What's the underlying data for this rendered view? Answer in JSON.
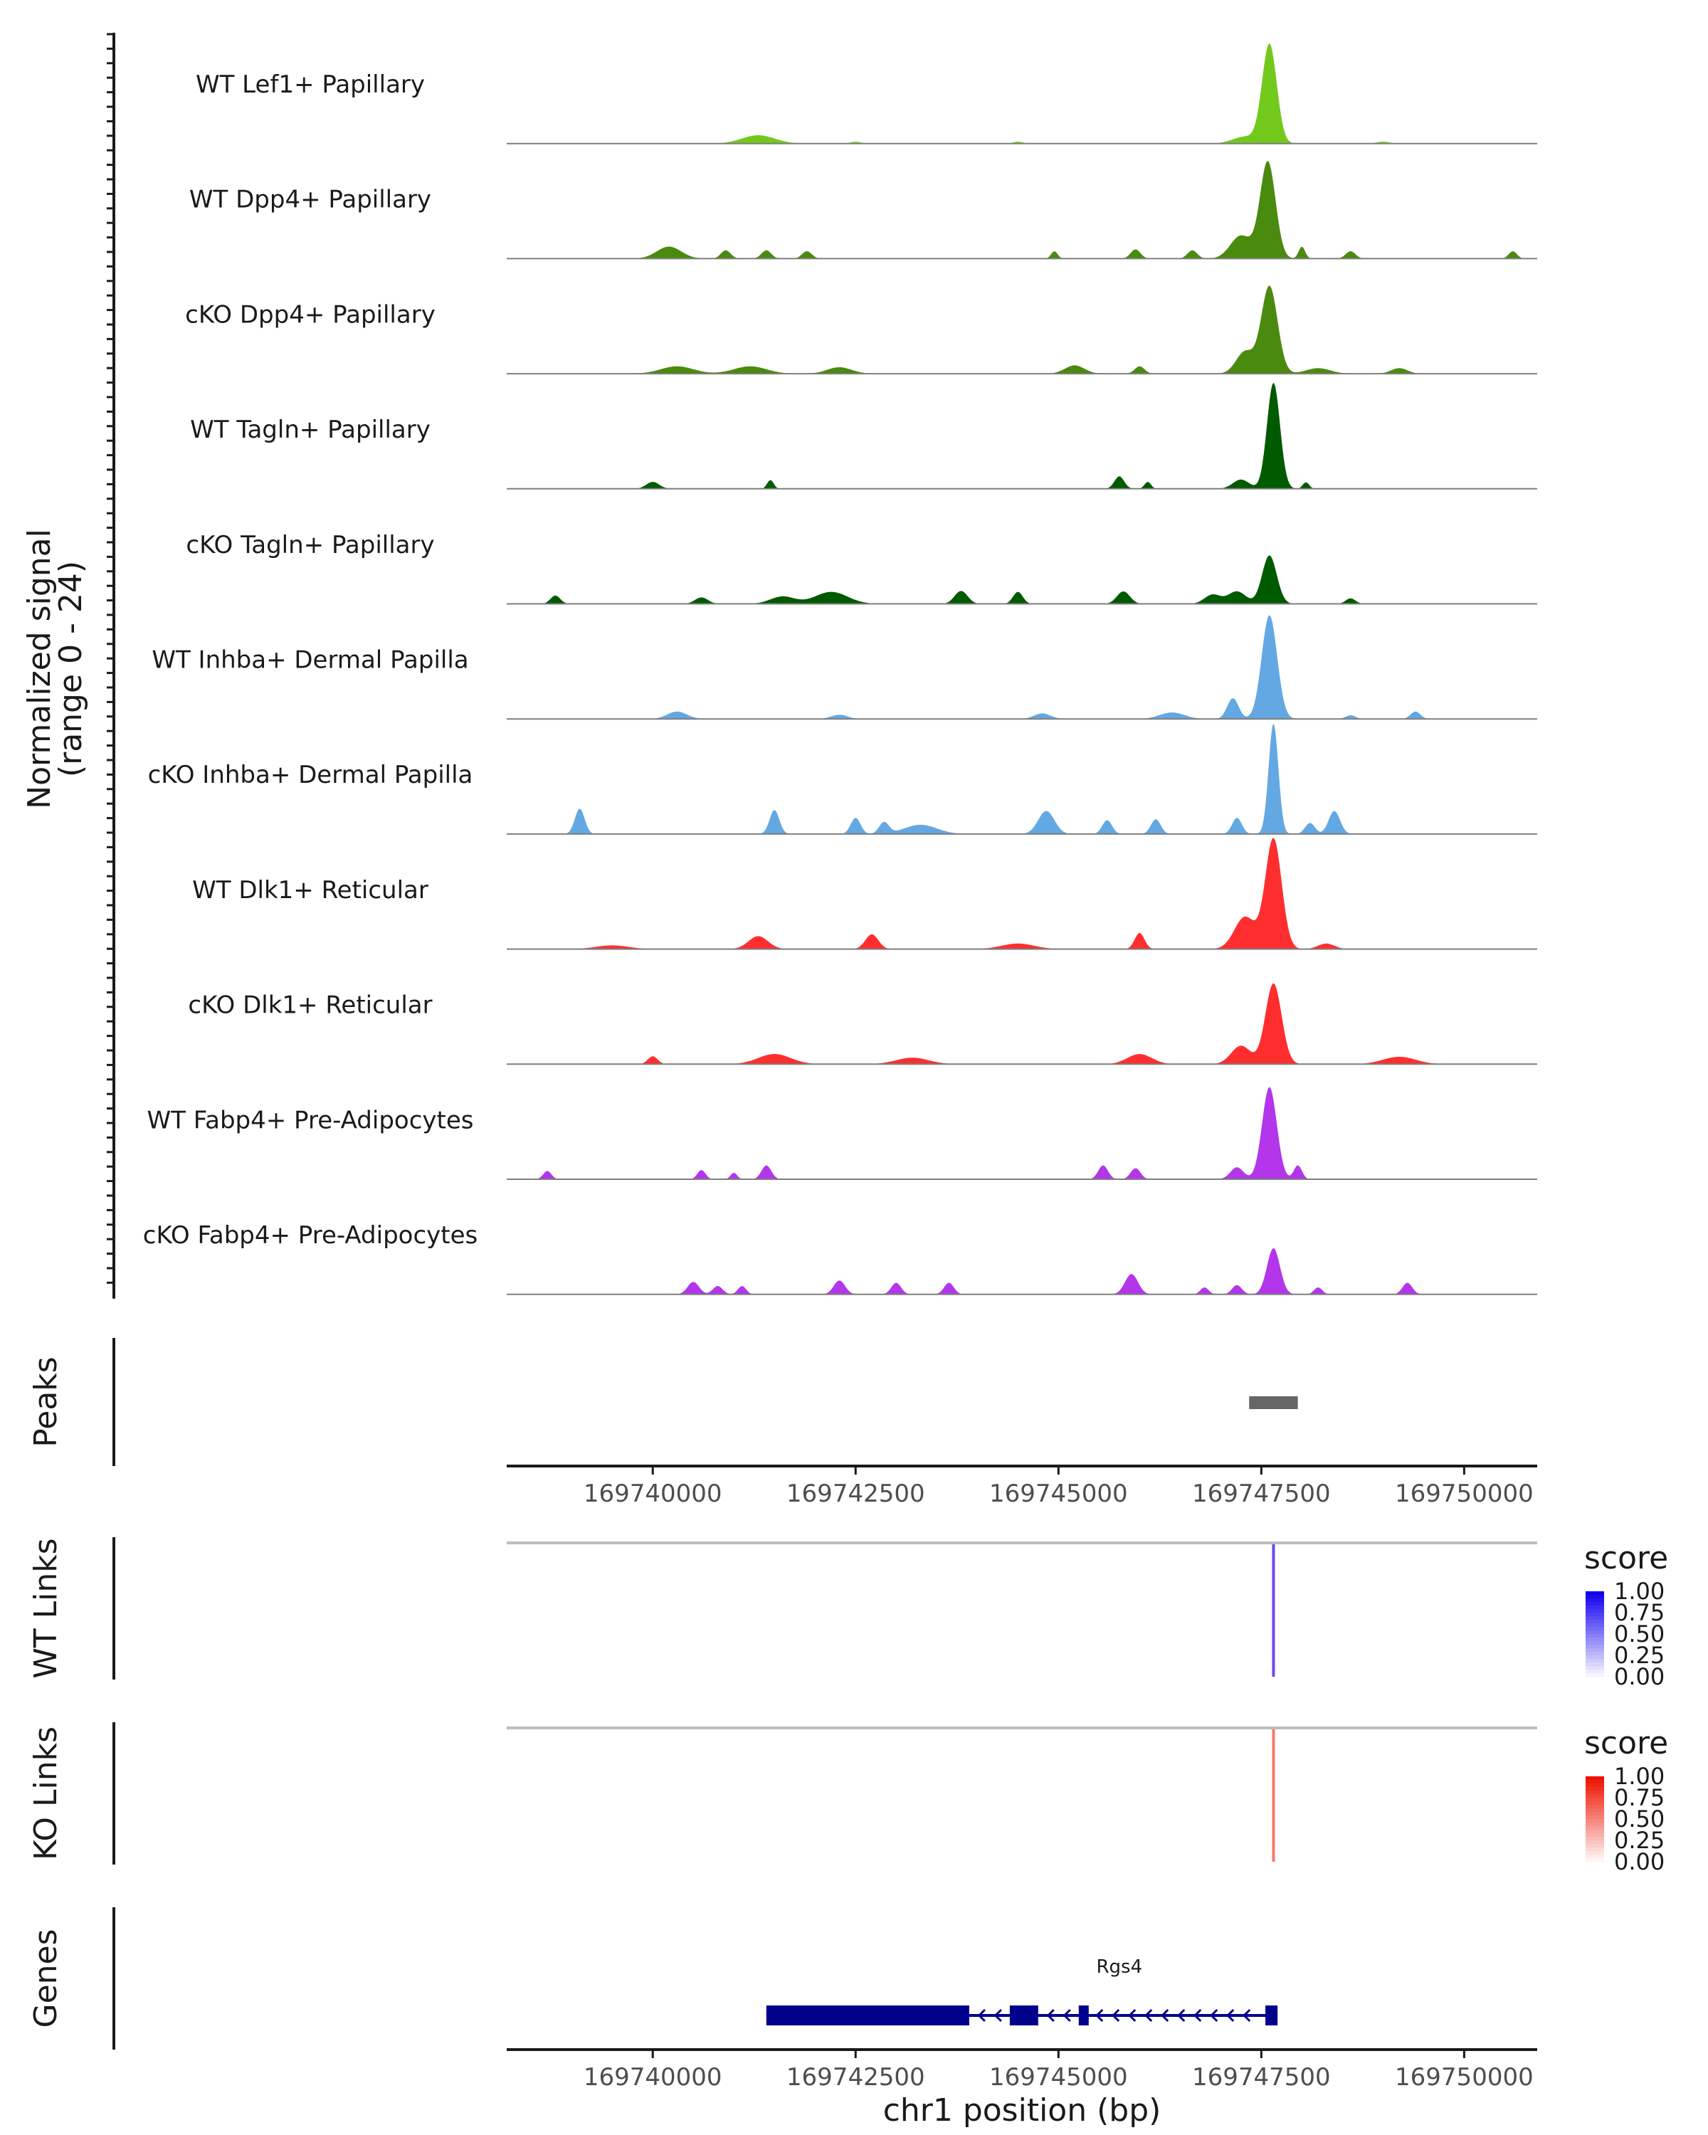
{
  "chart_data": {
    "type": "area",
    "genomic_region": {
      "chromosome": "chr1",
      "start": 169738200,
      "end": 169750900
    },
    "coverage": {
      "ylabel_line1": "Normalized signal",
      "ylabel_line2": "(range 0 - 24)",
      "ylim": [
        0,
        24
      ],
      "tracks": [
        {
          "name": "WT Lef1+ Papillary",
          "color": "#73C91B",
          "peaks": [
            [
              169747600,
              21.5,
              90
            ],
            [
              169747300,
              1.5,
              150
            ],
            [
              169741300,
              1.8,
              200
            ],
            [
              169742500,
              0.4,
              60
            ],
            [
              169744500,
              0.4,
              60
            ],
            [
              169749000,
              0.4,
              80
            ]
          ]
        },
        {
          "name": "WT Dpp4+ Papillary",
          "color": "#4A8A0E",
          "peaks": [
            [
              169747580,
              21,
              95
            ],
            [
              169747250,
              5,
              130
            ],
            [
              169748000,
              2.6,
              40
            ],
            [
              169740200,
              2.6,
              150
            ],
            [
              169740900,
              1.8,
              60
            ],
            [
              169741400,
              1.8,
              60
            ],
            [
              169741900,
              1.6,
              60
            ],
            [
              169744950,
              1.6,
              40
            ],
            [
              169745950,
              2,
              60
            ],
            [
              169746650,
              1.8,
              60
            ],
            [
              169748600,
              1.6,
              60
            ],
            [
              169750600,
              1.6,
              50
            ]
          ]
        },
        {
          "name": "cKO Dpp4+ Papillary",
          "color": "#4A8A0E",
          "peaks": [
            [
              169747600,
              19,
              100
            ],
            [
              169747300,
              4.8,
              110
            ],
            [
              169748200,
              1.2,
              150
            ],
            [
              169740300,
              1.6,
              200
            ],
            [
              169741200,
              1.6,
              200
            ],
            [
              169742300,
              1.4,
              150
            ],
            [
              169745200,
              1.8,
              120
            ],
            [
              169746000,
              1.6,
              60
            ],
            [
              169749200,
              1.2,
              100
            ]
          ]
        },
        {
          "name": "WT Tagln+ Papillary",
          "color": "#005A00",
          "peaks": [
            [
              169747650,
              23,
              80
            ],
            [
              169747250,
              2,
              100
            ],
            [
              169748050,
              1.4,
              40
            ],
            [
              169740000,
              1.5,
              80
            ],
            [
              169741450,
              1.9,
              40
            ],
            [
              169745750,
              2.7,
              60
            ],
            [
              169746100,
              1.5,
              40
            ]
          ]
        },
        {
          "name": "cKO Tagln+ Papillary",
          "color": "#005A00",
          "peaks": [
            [
              169747600,
              10.5,
              90
            ],
            [
              169747200,
              2.7,
              110
            ],
            [
              169738800,
              1.8,
              60
            ],
            [
              169742200,
              2.6,
              200
            ],
            [
              169743800,
              2.8,
              80
            ],
            [
              169744500,
              2.6,
              60
            ],
            [
              169745800,
              2.7,
              80
            ],
            [
              169746900,
              2,
              100
            ],
            [
              169740600,
              1.4,
              80
            ],
            [
              169741600,
              1.6,
              150
            ],
            [
              169748600,
              1.2,
              60
            ]
          ]
        },
        {
          "name": "WT Inhba+ Dermal Papilla",
          "color": "#63A8E3",
          "peaks": [
            [
              169747600,
              22.5,
              95
            ],
            [
              169747150,
              4.5,
              70
            ],
            [
              169740300,
              1.6,
              120
            ],
            [
              169744800,
              1.2,
              100
            ],
            [
              169746400,
              1.4,
              150
            ],
            [
              169749400,
              1.6,
              60
            ],
            [
              169742300,
              0.9,
              100
            ],
            [
              169748600,
              0.8,
              60
            ]
          ]
        },
        {
          "name": "cKO Inhba+ Dermal Papilla",
          "color": "#63A8E3",
          "peaks": [
            [
              169747650,
              24,
              60
            ],
            [
              169739100,
              5.5,
              60
            ],
            [
              169741500,
              5.2,
              60
            ],
            [
              169742500,
              3.5,
              60
            ],
            [
              169744850,
              5,
              100
            ],
            [
              169748400,
              5,
              70
            ],
            [
              169747200,
              3.5,
              60
            ],
            [
              169743300,
              2,
              200
            ],
            [
              169742850,
              2.5,
              60
            ],
            [
              169745600,
              3,
              60
            ],
            [
              169746200,
              3.2,
              60
            ],
            [
              169748100,
              2.4,
              60
            ]
          ]
        },
        {
          "name": "WT Dlk1+ Reticular",
          "color": "#FF2E2E",
          "peaks": [
            [
              169747650,
              24,
              100
            ],
            [
              169747300,
              7,
              130
            ],
            [
              169741300,
              2.8,
              120
            ],
            [
              169742700,
              3.2,
              80
            ],
            [
              169746000,
              3.5,
              60
            ],
            [
              169744500,
              1.2,
              200
            ],
            [
              169739500,
              0.8,
              200
            ],
            [
              169748300,
              1.2,
              100
            ]
          ]
        },
        {
          "name": "cKO Dlk1+ Reticular",
          "color": "#FF2E2E",
          "peaks": [
            [
              169747650,
              17.5,
              100
            ],
            [
              169747250,
              4,
              120
            ],
            [
              169740000,
              1.7,
              60
            ],
            [
              169741500,
              2.2,
              200
            ],
            [
              169746000,
              2.2,
              150
            ],
            [
              169743200,
              1.4,
              200
            ],
            [
              169749200,
              1.6,
              200
            ]
          ]
        },
        {
          "name": "WT Fabp4+ Pre-Adipocytes",
          "color": "#B336EB",
          "peaks": [
            [
              169747600,
              20,
              90
            ],
            [
              169747200,
              2.6,
              80
            ],
            [
              169747950,
              3,
              50
            ],
            [
              169738700,
              1.8,
              50
            ],
            [
              169740600,
              2,
              50
            ],
            [
              169741400,
              3,
              60
            ],
            [
              169745550,
              3,
              60
            ],
            [
              169745950,
              2.4,
              60
            ],
            [
              169741000,
              1.4,
              40
            ]
          ]
        },
        {
          "name": "cKO Fabp4+ Pre-Adipocytes",
          "color": "#B336EB",
          "peaks": [
            [
              169747650,
              10,
              80
            ],
            [
              169747200,
              2,
              60
            ],
            [
              169745900,
              4.4,
              80
            ],
            [
              169740500,
              2.7,
              70
            ],
            [
              169742300,
              3,
              70
            ],
            [
              169743000,
              2.5,
              60
            ],
            [
              169743650,
              2.5,
              60
            ],
            [
              169740800,
              1.8,
              60
            ],
            [
              169741100,
              1.8,
              50
            ],
            [
              169746800,
              1.5,
              50
            ],
            [
              169748200,
              1.5,
              50
            ],
            [
              169749300,
              2.5,
              60
            ]
          ]
        }
      ]
    },
    "peaks_track": {
      "label": "Peaks",
      "color": "#666666",
      "intervals": [
        [
          169747350,
          169747950
        ]
      ]
    },
    "wt_links": {
      "label": "WT Links",
      "links": [
        {
          "pos": 169747650,
          "score": 0.8,
          "color": "#6F47E8"
        }
      ],
      "legend_title": "score",
      "legend_ticks": [
        "1.00",
        "0.75",
        "0.50",
        "0.25",
        "0.00"
      ],
      "legend_high": "#1100EE",
      "legend_low": "#FFFFFF"
    },
    "ko_links": {
      "label": "KO Links",
      "links": [
        {
          "pos": 169747650,
          "score": 0.6,
          "color": "#F57A64"
        }
      ],
      "legend_title": "score",
      "legend_ticks": [
        "1.00",
        "0.75",
        "0.50",
        "0.25",
        "0.00"
      ],
      "legend_high": "#EE1100",
      "legend_low": "#FFFFFF"
    },
    "genes": {
      "label": "Genes",
      "gene_name": "Rgs4",
      "color": "#00008B",
      "span": [
        169741400,
        169747700
      ],
      "strand": "-",
      "exons": [
        [
          169741400,
          169743900
        ],
        [
          169744400,
          169744750
        ],
        [
          169745250,
          169745350
        ],
        [
          169747550,
          169747700
        ]
      ]
    },
    "x_ticks": [
      169740000,
      169742500,
      169745000,
      169747500,
      169750000
    ],
    "x_tick_labels": [
      "169740000",
      "169742500",
      "169745000",
      "169747500",
      "169750000"
    ],
    "xlabel": "chr1 position (bp)"
  }
}
